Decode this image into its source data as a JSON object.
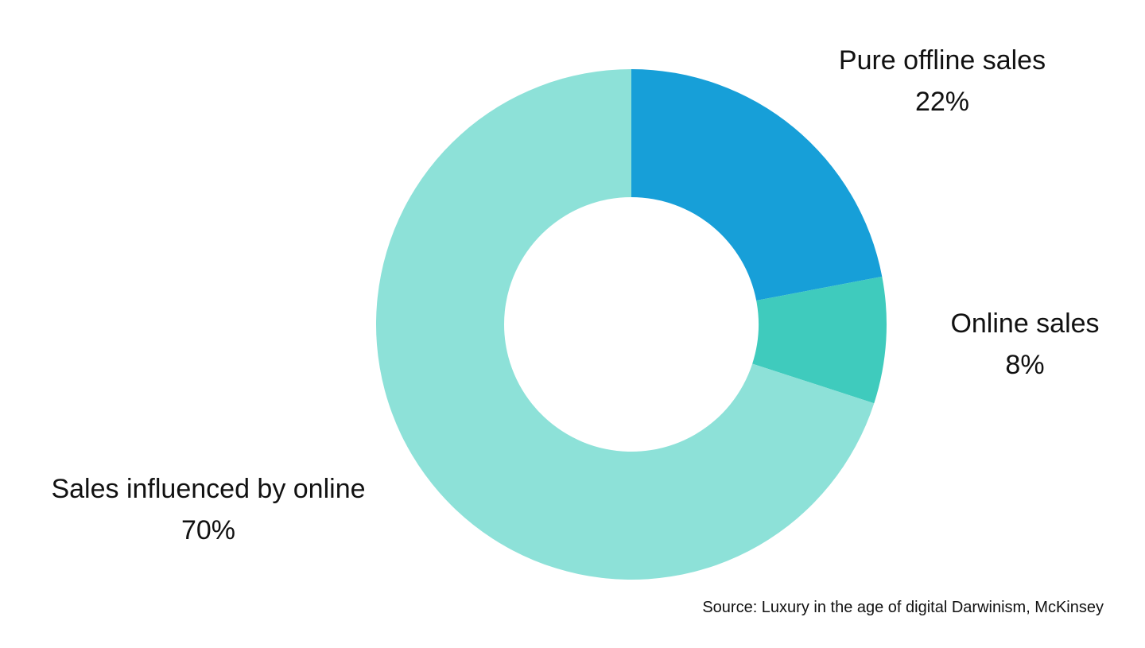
{
  "chart_data": {
    "type": "pie",
    "subtype": "donut",
    "title": "",
    "slices": [
      {
        "label": "Pure offline sales",
        "value": 22,
        "display": "22%",
        "color": "#179fd8"
      },
      {
        "label": "Online sales",
        "value": 8,
        "display": "8%",
        "color": "#3fcbbd"
      },
      {
        "label": "Sales influenced by online",
        "value": 70,
        "display": "70%",
        "color": "#8de1d8"
      }
    ],
    "start_angle": "12 o'clock",
    "direction": "clockwise"
  },
  "source": "Source: Luxury in the age of digital Darwinism, McKinsey"
}
